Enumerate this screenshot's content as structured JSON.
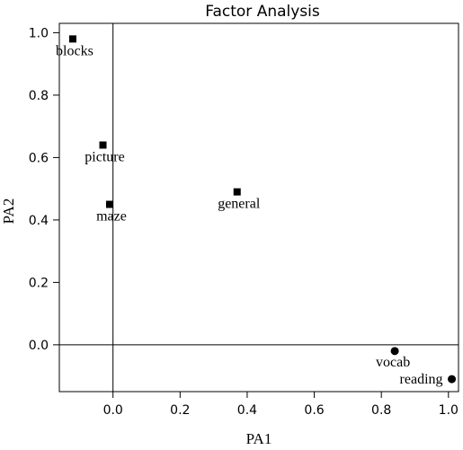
{
  "chart_data": {
    "type": "scatter",
    "title": "Factor Analysis",
    "xlabel": "PA1",
    "ylabel": "PA2",
    "xlim": [
      -0.16,
      1.03
    ],
    "ylim": [
      -0.15,
      1.03
    ],
    "x_ticks": [
      0.0,
      0.2,
      0.4,
      0.6,
      0.8,
      1.0
    ],
    "y_ticks": [
      0.0,
      0.2,
      0.4,
      0.6,
      0.8,
      1.0
    ],
    "x_tick_labels": [
      "0.0",
      "0.2",
      "0.4",
      "0.6",
      "0.8",
      "1.0"
    ],
    "y_tick_labels": [
      "0.0",
      "0.2",
      "0.4",
      "0.6",
      "0.8",
      "1.0"
    ],
    "reference_lines": {
      "x": 0,
      "y": 0
    },
    "grid": false,
    "points": [
      {
        "label": "blocks",
        "x": -0.12,
        "y": 0.98,
        "marker": "square"
      },
      {
        "label": "picture",
        "x": -0.03,
        "y": 0.64,
        "marker": "square"
      },
      {
        "label": "maze",
        "x": -0.01,
        "y": 0.45,
        "marker": "square"
      },
      {
        "label": "general",
        "x": 0.37,
        "y": 0.49,
        "marker": "square"
      },
      {
        "label": "vocab",
        "x": 0.84,
        "y": -0.02,
        "marker": "circle"
      },
      {
        "label": "reading",
        "x": 1.01,
        "y": -0.11,
        "marker": "circle"
      }
    ]
  }
}
